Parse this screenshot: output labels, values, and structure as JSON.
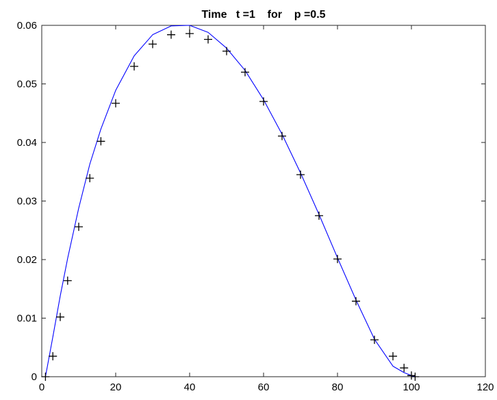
{
  "chart_data": {
    "type": "line",
    "title": "Time   t =1    for    p =0.5",
    "xlabel": "",
    "ylabel": "",
    "xlim": [
      0,
      120
    ],
    "ylim": [
      0,
      0.06
    ],
    "x_ticks": [
      0,
      20,
      40,
      60,
      80,
      100,
      120
    ],
    "y_ticks": [
      0,
      0.01,
      0.02,
      0.03,
      0.04,
      0.05,
      0.06
    ],
    "x_tick_labels": [
      "0",
      "20",
      "40",
      "60",
      "80",
      "100",
      "120"
    ],
    "y_tick_labels": [
      "0",
      "0.01",
      "0.02",
      "0.03",
      "0.04",
      "0.05",
      "0.06"
    ],
    "grid": false,
    "legend": "none",
    "series": [
      {
        "style": "line",
        "color": "#0000ff",
        "x": [
          1,
          3,
          5,
          7,
          10,
          13,
          16,
          20,
          25,
          30,
          35,
          40,
          45,
          50,
          55,
          60,
          65,
          70,
          75,
          80,
          85,
          90,
          95,
          98,
          100,
          101
        ],
        "values": [
          0,
          0.0068,
          0.0138,
          0.0202,
          0.0288,
          0.0363,
          0.0423,
          0.0489,
          0.0548,
          0.0584,
          0.0599,
          0.06,
          0.0588,
          0.0561,
          0.0523,
          0.0473,
          0.0414,
          0.0348,
          0.0277,
          0.0203,
          0.0131,
          0.0064,
          0.0018,
          0.0007,
          0.0002,
          0
        ]
      },
      {
        "style": "markers",
        "marker": "+",
        "color": "#000000",
        "x": [
          1,
          3,
          5,
          7,
          10,
          13,
          16,
          20,
          25,
          30,
          35,
          40,
          45,
          50,
          55,
          60,
          65,
          70,
          75,
          80,
          85,
          90,
          95,
          98,
          100,
          101
        ],
        "values": [
          0,
          0.0035,
          0.0102,
          0.0164,
          0.0256,
          0.0339,
          0.0402,
          0.0467,
          0.053,
          0.0568,
          0.0584,
          0.0586,
          0.0576,
          0.0556,
          0.052,
          0.047,
          0.0411,
          0.0345,
          0.0275,
          0.0201,
          0.0129,
          0.0063,
          0.0035,
          0.0015,
          0.0002,
          0
        ]
      }
    ]
  }
}
